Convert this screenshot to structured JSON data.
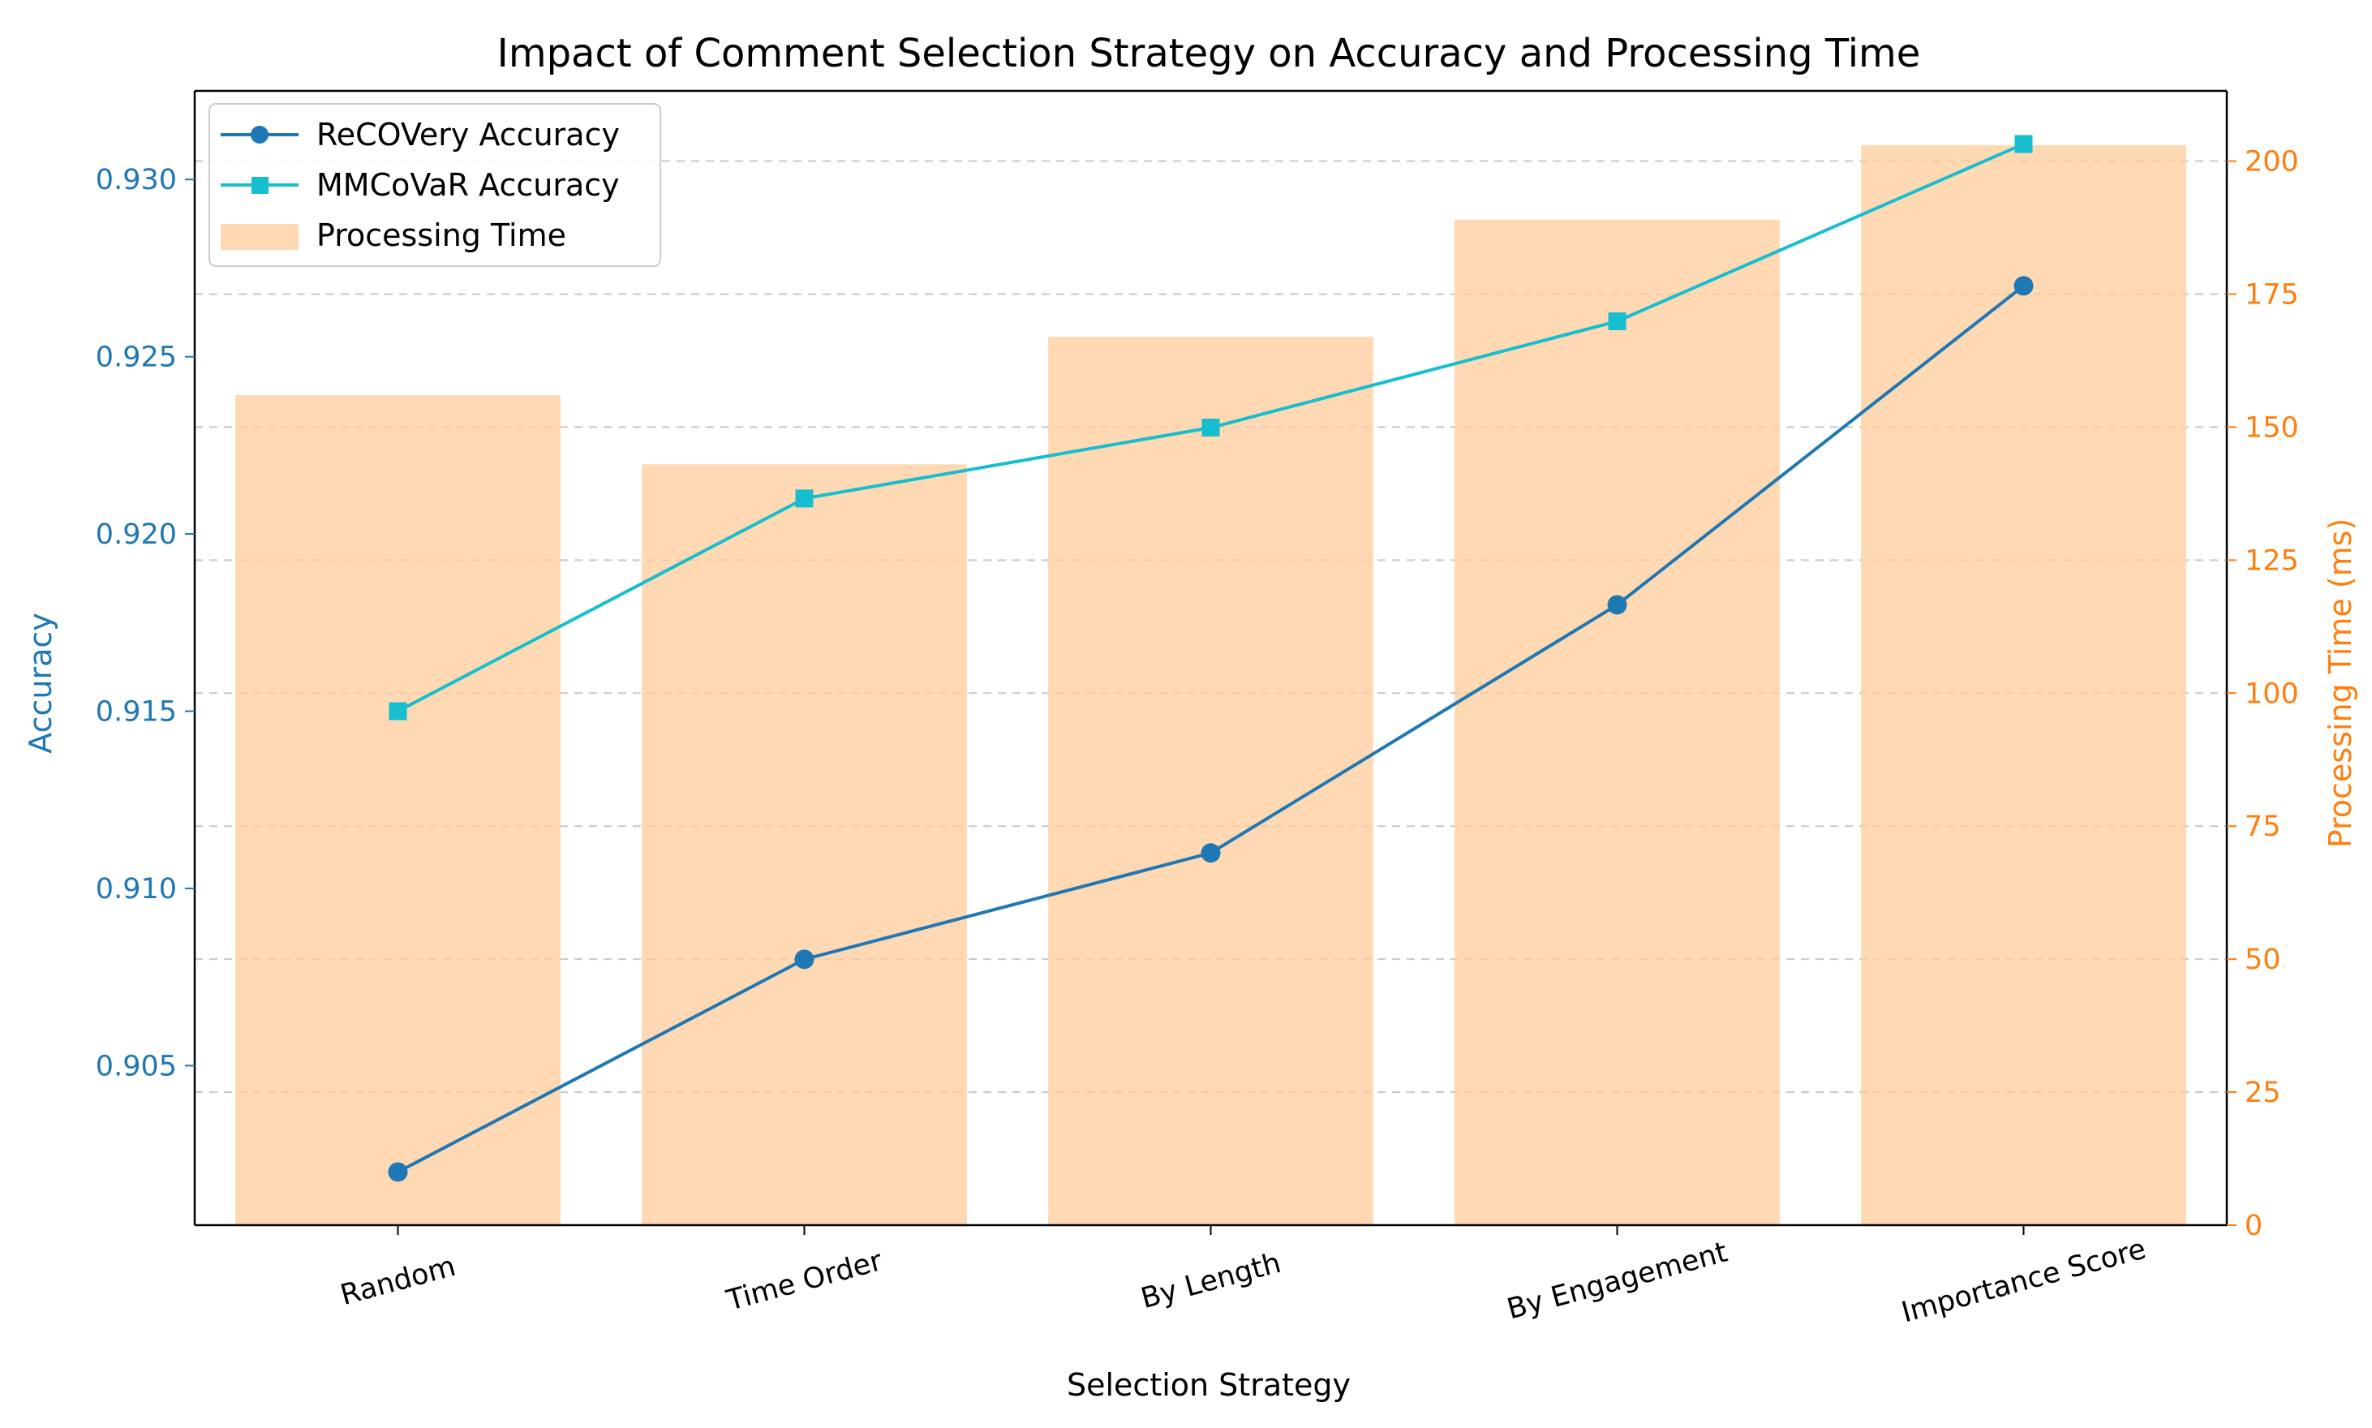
{
  "chart_data": {
    "type": "bar+line",
    "title": "Impact of Comment Selection Strategy on Accuracy and Processing Time",
    "xlabel": "Selection Strategy",
    "ylabel_left": "Accuracy",
    "ylabel_right": "Processing Time (ms)",
    "categories": [
      "Random",
      "Time Order",
      "By Length",
      "By Engagement",
      "Importance Score"
    ],
    "bars": {
      "name": "Processing Time",
      "values": [
        156,
        143,
        167,
        189,
        203
      ],
      "color": "#ffcc99"
    },
    "series": [
      {
        "name": "ReCOVery Accuracy",
        "values": [
          0.902,
          0.908,
          0.911,
          0.918,
          0.927
        ],
        "color": "#1f77b4",
        "marker": "circle"
      },
      {
        "name": "MMCoVaR Accuracy",
        "values": [
          0.915,
          0.921,
          0.923,
          0.926,
          0.931
        ],
        "color": "#17becf",
        "marker": "square"
      }
    ],
    "ylim_left": [
      0.9005,
      0.9325
    ],
    "yticks_left": [
      "0.905",
      "0.910",
      "0.915",
      "0.920",
      "0.925",
      "0.930"
    ],
    "ylim_right": [
      0,
      213.2
    ],
    "yticks_right": [
      "0",
      "25",
      "50",
      "75",
      "100",
      "125",
      "150",
      "175",
      "200"
    ],
    "left_axis_color": "#1f77b4",
    "right_axis_color": "#ff7f0e",
    "grid": "horizontal dashed (right axis)",
    "legend": "top-left"
  }
}
